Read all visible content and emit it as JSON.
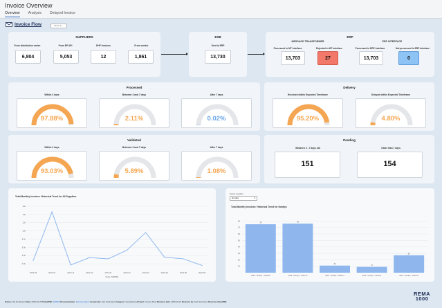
{
  "header": {
    "title": "Invoice Overview",
    "tabs": [
      {
        "label": "Overview",
        "active": true
      },
      {
        "label": "Analysis",
        "active": false
      },
      {
        "label": "Delayed Invoice",
        "active": false
      }
    ]
  },
  "flow": {
    "title": "Invoice Flow",
    "show_button": "Show in..."
  },
  "suppliers": {
    "title": "SUPPLIERS",
    "items": [
      {
        "label": "From distribution center",
        "value": "6,804"
      },
      {
        "label": "From EP API",
        "value": "5,053"
      },
      {
        "label": "EHF Invoices",
        "value": "12"
      },
      {
        "label": "From vendor",
        "value": "1,861"
      }
    ]
  },
  "esb": {
    "title": "ESB",
    "label": "Sent to ERP",
    "value": "13,730"
  },
  "erp": {
    "title": "ERP",
    "message_transformer": {
      "title": "MESSAGE TRANSFORMER",
      "items": [
        {
          "label": "Processed in MT interface",
          "value": "13,703"
        },
        {
          "label": "Rejected in MT interface",
          "value": "27"
        }
      ]
    },
    "erp_interface": {
      "title": "ERP INTERFACE",
      "items": [
        {
          "label": "Processed in ERP interface",
          "value": "13,703"
        },
        {
          "label": "Not processed in ERP interface",
          "value": "0"
        }
      ]
    }
  },
  "processed": {
    "title": "Processed",
    "gauges": [
      {
        "label": "Within 3 days",
        "value": "97.88%",
        "fraction": 0.9788,
        "color": "#f5a652"
      },
      {
        "label": "Between 3 and 7 days",
        "value": "2.11%",
        "fraction": 0.0211,
        "color": "#f5a652"
      },
      {
        "label": "After 7 days",
        "value": "0.02%",
        "fraction": 0.0002,
        "color": "#6aa7e8"
      }
    ]
  },
  "delivery": {
    "title": "Delivery",
    "gauges": [
      {
        "label": "Received within Expected Timeframe",
        "value": "95.20%",
        "fraction": 0.952,
        "color": "#f5a652"
      },
      {
        "label": "Delayed within Expected Timeframe",
        "value": "4.80%",
        "fraction": 0.048,
        "color": "#f5a652"
      }
    ]
  },
  "validated": {
    "title": "Validated",
    "gauges": [
      {
        "label": "Within 3 days",
        "value": "93.03%",
        "fraction": 0.9303,
        "color": "#f5a652"
      },
      {
        "label": "Between 3 and 7 days",
        "value": "5.89%",
        "fraction": 0.0589,
        "color": "#f5a652"
      },
      {
        "label": "After 7 days",
        "value": "1.08%",
        "fraction": 0.0108,
        "color": "#f5a652"
      }
    ]
  },
  "pending": {
    "title": "Pending",
    "items": [
      {
        "label": "Between 3 - 7 days old",
        "value": "151"
      },
      {
        "label": "Older than 7 days",
        "value": "154"
      }
    ]
  },
  "chart_data": [
    {
      "type": "line",
      "title": "Total Monthly Invoices: Historical Trend for All Suppliers",
      "xlabel": "FULL_MONTH",
      "ylabel": "",
      "x": [
        "2023-09",
        "2023-10",
        "2023-11",
        "2023-12",
        "2024-01",
        "2024-02",
        "2024-03",
        "2024-04",
        "2024-05",
        "2024-06"
      ],
      "y_ticks": [
        "2.0k",
        "4.0k",
        "6.0k",
        "8.0k",
        "10k",
        "12k",
        "14k",
        "16k"
      ],
      "ylim": [
        1000,
        17000
      ],
      "series": [
        {
          "name": "",
          "values": [
            2800,
            14600,
            1700,
            3500,
            3200,
            5300,
            9600,
            3600,
            3200,
            1600
          ]
        }
      ],
      "color": "#8fb7ee"
    },
    {
      "type": "bar",
      "title": "Total Monthly Invoices: Historical Trend for Nordlys",
      "select_label": "Select supplier",
      "select_value": "Nordlys",
      "xlabel": "",
      "categories": [
        "2023 - Nordlys - 2023-09",
        "2023 - Nordlys - 2023-10",
        "2023 - Nordlys - 2023-11",
        "2024 - Nordlys - 2024-01",
        "2024 - Nordlys - 2024-02"
      ],
      "values": [
        75,
        76,
        11,
        9,
        27
      ],
      "value_labels": [
        "75",
        "76",
        "11",
        "9",
        "27"
      ],
      "y_ticks": [
        "10",
        "20",
        "30",
        "40",
        "50",
        "60",
        "70",
        "80"
      ],
      "ylim": [
        0,
        90
      ],
      "color": "#8fb7ee"
    }
  ],
  "footer": {
    "parts": [
      {
        "label": "Owner:",
        "value": "Ola Nordmann"
      },
      {
        "label": "Date:",
        "value": "2025-02-25"
      },
      {
        "label": "Ticket/PBI:",
        "value": "100000",
        "link": true
      },
      {
        "label": "Documentation:",
        "value": "Documentation",
        "link": true
      },
      {
        "label": "Created by:",
        "value": "Kari Nordmann"
      },
      {
        "label": "Category:",
        "value": "Varedekning"
      },
      {
        "label": "Project:",
        "value": "Invoice Flow"
      },
      {
        "label": "Revision date:",
        "value": "2025-02-24"
      },
      {
        "label": "Revision by:",
        "value": "Kari Nordmann"
      },
      {
        "label": "Revision ticket/PBI:",
        "value": ""
      }
    ]
  },
  "brand": {
    "line1": "REMA",
    "line2": "1000"
  }
}
